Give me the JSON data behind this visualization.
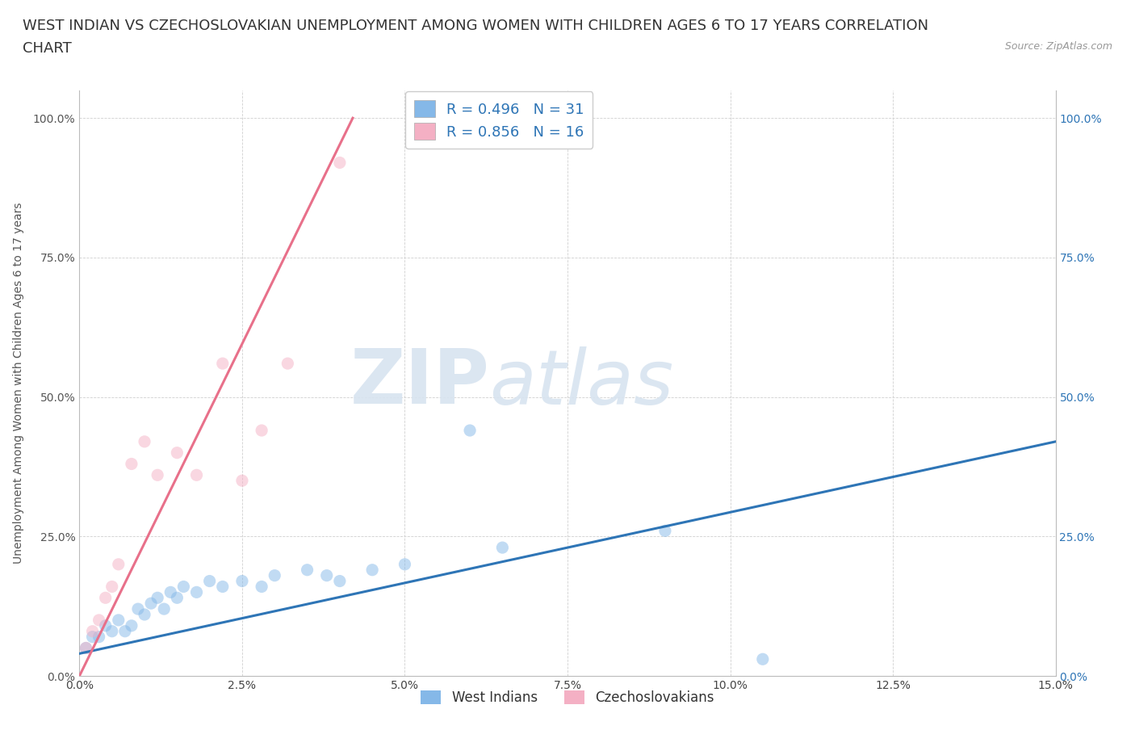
{
  "title_line1": "WEST INDIAN VS CZECHOSLOVAKIAN UNEMPLOYMENT AMONG WOMEN WITH CHILDREN AGES 6 TO 17 YEARS CORRELATION",
  "title_line2": "CHART",
  "source_text": "Source: ZipAtlas.com",
  "ylabel": "Unemployment Among Women with Children Ages 6 to 17 years",
  "xlim": [
    0.0,
    0.15
  ],
  "ylim": [
    0.0,
    1.05
  ],
  "xtick_labels": [
    "0.0%",
    "2.5%",
    "5.0%",
    "7.5%",
    "10.0%",
    "12.5%",
    "15.0%"
  ],
  "xtick_values": [
    0.0,
    0.025,
    0.05,
    0.075,
    0.1,
    0.125,
    0.15
  ],
  "ytick_labels": [
    "0.0%",
    "25.0%",
    "50.0%",
    "75.0%",
    "100.0%"
  ],
  "ytick_values": [
    0.0,
    0.25,
    0.5,
    0.75,
    1.0
  ],
  "watermark_zip": "ZIP",
  "watermark_atlas": "atlas",
  "legend_labels": [
    "West Indians",
    "Czechoslovakians"
  ],
  "west_indian_color": "#85b8e8",
  "czechoslovakian_color": "#f4b0c4",
  "west_indian_line_color": "#2e75b6",
  "czechoslovakian_line_color": "#e8708a",
  "west_indian_scatter_x": [
    0.001,
    0.002,
    0.003,
    0.004,
    0.005,
    0.006,
    0.007,
    0.008,
    0.009,
    0.01,
    0.011,
    0.012,
    0.013,
    0.014,
    0.015,
    0.016,
    0.018,
    0.02,
    0.022,
    0.025,
    0.028,
    0.03,
    0.035,
    0.038,
    0.04,
    0.045,
    0.05,
    0.06,
    0.065,
    0.09,
    0.105
  ],
  "west_indian_scatter_y": [
    0.05,
    0.07,
    0.07,
    0.09,
    0.08,
    0.1,
    0.08,
    0.09,
    0.12,
    0.11,
    0.13,
    0.14,
    0.12,
    0.15,
    0.14,
    0.16,
    0.15,
    0.17,
    0.16,
    0.17,
    0.16,
    0.18,
    0.19,
    0.18,
    0.17,
    0.19,
    0.2,
    0.44,
    0.23,
    0.26,
    0.03
  ],
  "czechoslovakian_scatter_x": [
    0.001,
    0.002,
    0.003,
    0.004,
    0.005,
    0.006,
    0.008,
    0.01,
    0.012,
    0.015,
    0.018,
    0.022,
    0.025,
    0.028,
    0.032,
    0.04
  ],
  "czechoslovakian_scatter_y": [
    0.05,
    0.08,
    0.1,
    0.14,
    0.16,
    0.2,
    0.38,
    0.42,
    0.36,
    0.4,
    0.36,
    0.56,
    0.35,
    0.44,
    0.56,
    0.92
  ],
  "west_indian_trend_x": [
    0.0,
    0.15
  ],
  "west_indian_trend_y": [
    0.04,
    0.42
  ],
  "czechoslovakian_trend_x": [
    0.0,
    0.042
  ],
  "czechoslovakian_trend_y": [
    0.0,
    1.0
  ],
  "background_color": "#ffffff",
  "grid_color": "#d0d0d0",
  "title_fontsize": 13,
  "axis_label_fontsize": 10,
  "tick_fontsize": 10,
  "tick_color_left": "#555555",
  "tick_color_right": "#2e75b6",
  "scatter_size": 120,
  "scatter_alpha": 0.5,
  "line_width": 2.2,
  "R_west_indian": "0.496",
  "N_west_indian": "31",
  "R_czechoslovakian": "0.856",
  "N_czechoslovakian": "16"
}
